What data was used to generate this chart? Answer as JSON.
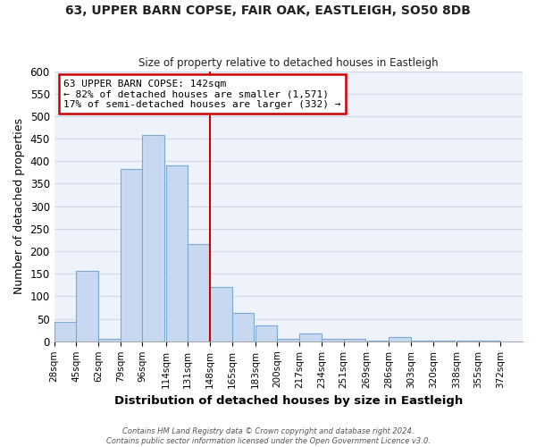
{
  "title": "63, UPPER BARN COPSE, FAIR OAK, EASTLEIGH, SO50 8DB",
  "subtitle": "Size of property relative to detached houses in Eastleigh",
  "xlabel": "Distribution of detached houses by size in Eastleigh",
  "ylabel": "Number of detached properties",
  "bar_color": "#c8d8f0",
  "bar_edge_color": "#7aaad0",
  "grid_color": "#d0d8e8",
  "background_color": "#ffffff",
  "plot_bg_color": "#eef2fb",
  "bin_labels": [
    "28sqm",
    "45sqm",
    "62sqm",
    "79sqm",
    "96sqm",
    "114sqm",
    "131sqm",
    "148sqm",
    "165sqm",
    "183sqm",
    "200sqm",
    "217sqm",
    "234sqm",
    "251sqm",
    "269sqm",
    "286sqm",
    "303sqm",
    "320sqm",
    "338sqm",
    "355sqm",
    "372sqm"
  ],
  "bin_left_edges": [
    28,
    45,
    62,
    79,
    96,
    114,
    131,
    148,
    165,
    183,
    200,
    217,
    234,
    251,
    269,
    286,
    303,
    320,
    338,
    355,
    372
  ],
  "bin_width": 17,
  "bar_heights": [
    43,
    157,
    5,
    383,
    458,
    390,
    217,
    120,
    63,
    35,
    5,
    18,
    5,
    6,
    2,
    9,
    2,
    2,
    2,
    2,
    0
  ],
  "vline_x": 148,
  "vline_color": "#cc0000",
  "ylim": [
    0,
    600
  ],
  "yticks": [
    0,
    50,
    100,
    150,
    200,
    250,
    300,
    350,
    400,
    450,
    500,
    550,
    600
  ],
  "annotation_title": "63 UPPER BARN COPSE: 142sqm",
  "annotation_line1": "← 82% of detached houses are smaller (1,571)",
  "annotation_line2": "17% of semi-detached houses are larger (332) →",
  "annotation_box_color": "#ffffff",
  "annotation_box_edge": "#cc0000",
  "footer_line1": "Contains HM Land Registry data © Crown copyright and database right 2024.",
  "footer_line2": "Contains public sector information licensed under the Open Government Licence v3.0."
}
